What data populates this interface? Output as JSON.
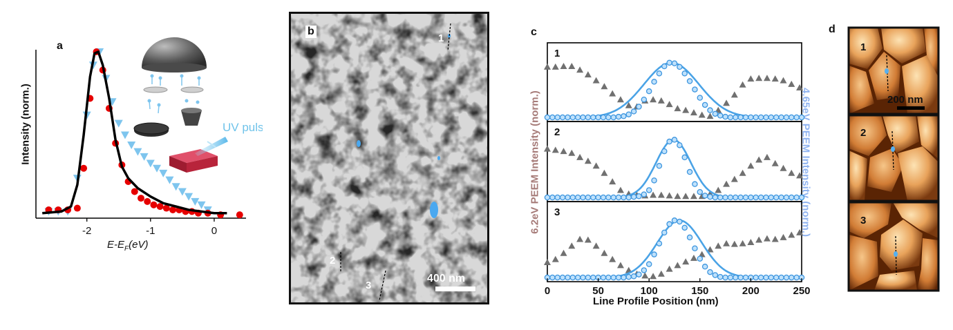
{
  "figure": {
    "panel_a": {
      "label": "a",
      "ylabel": "Intensity (norm.)",
      "xlabel_prefix": "E-E",
      "xlabel_sub": "F",
      "xlabel_suffix": "(eV)",
      "inset_label": "UV pulse",
      "colors": {
        "red": "#e60000",
        "blue": "#7ec5ee",
        "line": "#000000"
      }
    },
    "panel_b": {
      "label": "b",
      "markers": [
        "1",
        "2",
        "3"
      ],
      "scalebar": "400 nm"
    },
    "panel_c": {
      "label": "c",
      "xlabel": "Line Profile Position (nm)",
      "ylabel_left": "6.2eV PEEM Intensity (norm.)",
      "ylabel_right": "4.65eV PEEM Intensity (norm.)",
      "subplot_labels": [
        "1",
        "2",
        "3"
      ],
      "colors": {
        "gray": "#707070",
        "blue": "#4aa3e6",
        "left_label": "#a67b78",
        "right_label": "#8fb3f0"
      }
    },
    "panel_d": {
      "label": "d",
      "subplot_labels": [
        "1",
        "2",
        "3"
      ],
      "scalebar": "200 nm"
    }
  },
  "chart_data": [
    {
      "type": "scatter",
      "panel": "a",
      "xlim": [
        -2.8,
        0.5
      ],
      "xticks": [
        "-2",
        "-1",
        "0"
      ],
      "series": [
        {
          "marker": "circle",
          "color": "#e60000",
          "x": [
            -2.6,
            -2.45,
            -2.3,
            -2.15,
            -2.05,
            -1.95,
            -1.85,
            -1.75,
            -1.65,
            -1.55,
            -1.45,
            -1.35,
            -1.25,
            -1.15,
            -1.05,
            -0.95,
            -0.85,
            -0.75,
            -0.65,
            -0.55,
            -0.45,
            -0.35,
            -0.25,
            -0.1,
            0.1,
            0.4
          ],
          "y": [
            0.05,
            0.05,
            0.05,
            0.06,
            0.3,
            0.72,
            1.0,
            0.89,
            0.66,
            0.45,
            0.32,
            0.22,
            0.16,
            0.12,
            0.1,
            0.08,
            0.07,
            0.06,
            0.05,
            0.05,
            0.04,
            0.04,
            0.03,
            0.03,
            0.02,
            0.02
          ]
        },
        {
          "marker": "triangle-down",
          "color": "#7ec5ee",
          "x": [
            -2.6,
            -2.45,
            -2.3,
            -2.15,
            -2.0,
            -1.9,
            -1.8,
            -1.7,
            -1.6,
            -1.5,
            -1.4,
            -1.3,
            -1.2,
            -1.1,
            -1.0,
            -0.9,
            -0.8,
            -0.7,
            -0.6,
            -0.5,
            -0.4,
            -0.3,
            -0.2,
            -0.1
          ],
          "y": [
            0.04,
            0.04,
            0.04,
            0.24,
            0.62,
            0.92,
            1.0,
            0.84,
            0.7,
            0.57,
            0.5,
            0.44,
            0.4,
            0.37,
            0.33,
            0.3,
            0.27,
            0.23,
            0.19,
            0.16,
            0.13,
            0.1,
            0.08,
            0.05
          ]
        }
      ],
      "fit_line": {
        "x": [
          -2.7,
          -2.4,
          -2.25,
          -2.15,
          -2.05,
          -1.95,
          -1.88,
          -1.82,
          -1.75,
          -1.65,
          -1.55,
          -1.45,
          -1.35,
          -1.2,
          -1.0,
          -0.8,
          -0.6,
          -0.4,
          -0.2,
          0.0,
          0.2
        ],
        "y": [
          0.03,
          0.04,
          0.07,
          0.2,
          0.5,
          0.85,
          0.99,
          1.0,
          0.92,
          0.72,
          0.47,
          0.31,
          0.24,
          0.18,
          0.13,
          0.09,
          0.07,
          0.05,
          0.04,
          0.03,
          0.03
        ]
      }
    },
    {
      "type": "line",
      "panel": "c",
      "xlim": [
        0,
        250
      ],
      "xticks": [
        0,
        50,
        100,
        150,
        200,
        250
      ],
      "subplots": [
        {
          "label": "1",
          "gray": {
            "x": [
              0,
              8,
              16,
              24,
              32,
              40,
              48,
              56,
              64,
              72,
              80,
              88,
              96,
              104,
              112,
              120,
              128,
              136,
              144,
              152,
              160,
              168,
              176,
              184,
              192,
              200,
              208,
              216,
              224,
              232,
              240,
              248
            ],
            "y": [
              0.85,
              0.85,
              0.86,
              0.86,
              0.8,
              0.72,
              0.62,
              0.52,
              0.4,
              0.3,
              0.2,
              0.18,
              0.28,
              0.3,
              0.28,
              0.22,
              0.15,
              0.12,
              0.08,
              0.04,
              0.02,
              0.12,
              0.24,
              0.38,
              0.55,
              0.65,
              0.66,
              0.66,
              0.65,
              0.62,
              0.56,
              0.5
            ]
          },
          "blue_points": {
            "x": [
              0,
              5,
              10,
              15,
              20,
              25,
              30,
              35,
              40,
              45,
              50,
              55,
              60,
              65,
              70,
              75,
              80,
              85,
              90,
              95,
              100,
              105,
              110,
              115,
              120,
              125,
              130,
              135,
              140,
              145,
              150,
              155,
              160,
              165,
              170,
              175,
              180,
              185,
              190,
              195,
              200,
              205,
              210,
              215,
              220,
              225,
              230,
              235,
              240,
              245,
              250
            ],
            "y": [
              0,
              0,
              0,
              0,
              0,
              0,
              0,
              0,
              0,
              0,
              0,
              0,
              0,
              0,
              0.01,
              0.02,
              0.05,
              0.1,
              0.18,
              0.3,
              0.44,
              0.6,
              0.74,
              0.86,
              0.92,
              0.91,
              0.85,
              0.74,
              0.61,
              0.47,
              0.33,
              0.21,
              0.12,
              0.06,
              0.03,
              0.01,
              0,
              0,
              0,
              0,
              0,
              0,
              0,
              0,
              0,
              0,
              0,
              0,
              0,
              0,
              0
            ]
          },
          "fit": {
            "center": 122,
            "sigma": 27,
            "amp": 0.92
          }
        },
        {
          "label": "2",
          "gray": {
            "x": [
              0,
              8,
              16,
              24,
              32,
              40,
              48,
              56,
              64,
              72,
              80,
              88,
              96,
              104,
              112,
              120,
              128,
              136,
              144,
              152,
              160,
              168,
              176,
              184,
              192,
              200,
              208,
              216,
              224,
              232,
              240,
              248
            ],
            "y": [
              0.8,
              0.78,
              0.76,
              0.73,
              0.66,
              0.6,
              0.52,
              0.4,
              0.26,
              0.12,
              0.06,
              0.04,
              0.03,
              0.04,
              0.04,
              0.03,
              0.02,
              0.02,
              0.02,
              0.02,
              0.06,
              0.12,
              0.22,
              0.3,
              0.4,
              0.52,
              0.62,
              0.66,
              0.56,
              0.48,
              0.4,
              0.36
            ]
          },
          "blue_points": {
            "x": [
              0,
              5,
              10,
              15,
              20,
              25,
              30,
              35,
              40,
              45,
              50,
              55,
              60,
              65,
              70,
              75,
              80,
              85,
              90,
              95,
              100,
              105,
              110,
              115,
              120,
              125,
              130,
              135,
              140,
              145,
              150,
              155,
              160,
              165,
              170,
              175,
              180,
              185,
              190,
              195,
              200,
              205,
              210,
              215,
              220,
              225,
              230,
              235,
              240,
              245,
              250
            ],
            "y": [
              0,
              0,
              0,
              0,
              0,
              0,
              0,
              0,
              0,
              0,
              0,
              0,
              0,
              0,
              0,
              0,
              0,
              0.01,
              0.02,
              0.05,
              0.12,
              0.28,
              0.52,
              0.76,
              0.92,
              0.95,
              0.86,
              0.66,
              0.42,
              0.22,
              0.09,
              0.03,
              0.01,
              0,
              0,
              0,
              0,
              0,
              0,
              0,
              0,
              0,
              0,
              0,
              0,
              0,
              0,
              0,
              0,
              0,
              0
            ]
          },
          "fit": {
            "center": 124,
            "sigma": 17,
            "amp": 0.95
          }
        },
        {
          "label": "3",
          "gray": {
            "x": [
              0,
              8,
              16,
              24,
              32,
              40,
              48,
              56,
              64,
              72,
              80,
              88,
              96,
              104,
              112,
              120,
              128,
              136,
              144,
              152,
              160,
              168,
              176,
              184,
              192,
              200,
              208,
              216,
              224,
              232,
              240,
              248
            ],
            "y": [
              0.25,
              0.3,
              0.4,
              0.52,
              0.63,
              0.62,
              0.52,
              0.4,
              0.3,
              0.2,
              0.12,
              0.06,
              0.03,
              0.02,
              0.06,
              0.14,
              0.2,
              0.26,
              0.32,
              0.38,
              0.46,
              0.52,
              0.56,
              0.55,
              0.56,
              0.58,
              0.62,
              0.64,
              0.63,
              0.66,
              0.7,
              0.74
            ]
          },
          "blue_points": {
            "x": [
              0,
              5,
              10,
              15,
              20,
              25,
              30,
              35,
              40,
              45,
              50,
              55,
              60,
              65,
              70,
              75,
              80,
              85,
              90,
              95,
              100,
              105,
              110,
              115,
              120,
              125,
              130,
              135,
              140,
              145,
              150,
              155,
              160,
              165,
              170,
              175,
              180,
              185,
              190,
              195,
              200,
              205,
              210,
              215,
              220,
              225,
              230,
              235,
              240,
              245,
              250
            ],
            "y": [
              0,
              0,
              0,
              0,
              0,
              0,
              0,
              0,
              0,
              0,
              0,
              0,
              0,
              0,
              0,
              0,
              0.01,
              0.02,
              0.05,
              0.12,
              0.22,
              0.38,
              0.56,
              0.74,
              0.88,
              0.94,
              0.92,
              0.82,
              0.66,
              0.48,
              0.31,
              0.18,
              0.09,
              0.04,
              0.01,
              0,
              0,
              0,
              0,
              0,
              0,
              0,
              0,
              0,
              0,
              0,
              0,
              0,
              0,
              0,
              0
            ]
          },
          "fit": {
            "center": 130,
            "sigma": 22,
            "amp": 0.94
          }
        }
      ]
    }
  ]
}
